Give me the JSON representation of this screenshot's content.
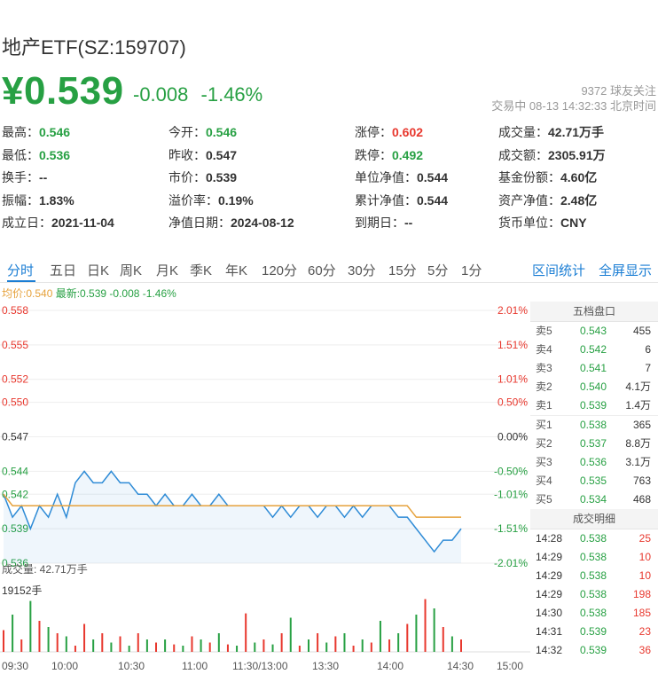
{
  "title": "地产ETF(SZ:159707)",
  "price": "¥0.539",
  "change": "-0.008",
  "change_pct": "-1.46%",
  "followers": "9372  球友关注",
  "status": "交易中  08-13  14:32:33  北京时间",
  "quote": [
    [
      {
        "label": "最高：",
        "value": "0.546",
        "color": "green"
      },
      {
        "label": "今开：",
        "value": "0.546",
        "color": "green"
      },
      {
        "label": "涨停：",
        "value": "0.602",
        "color": "red"
      },
      {
        "label": "成交量：",
        "value": "42.71万手",
        "color": ""
      }
    ],
    [
      {
        "label": "最低：",
        "value": "0.536",
        "color": "green"
      },
      {
        "label": "昨收：",
        "value": "0.547",
        "color": ""
      },
      {
        "label": "跌停：",
        "value": "0.492",
        "color": "green"
      },
      {
        "label": "成交额：",
        "value": "2305.91万",
        "color": ""
      }
    ],
    [
      {
        "label": "换手：",
        "value": "--",
        "color": ""
      },
      {
        "label": "市价：",
        "value": "0.539",
        "color": ""
      },
      {
        "label": "单位净值：",
        "value": "0.544",
        "color": ""
      },
      {
        "label": "基金份额：",
        "value": "4.60亿",
        "color": ""
      }
    ],
    [
      {
        "label": "振幅：",
        "value": "1.83%",
        "color": ""
      },
      {
        "label": "溢价率：",
        "value": "0.19%",
        "color": ""
      },
      {
        "label": "累计净值：",
        "value": "0.544",
        "color": ""
      },
      {
        "label": "资产净值：",
        "value": "2.48亿",
        "color": ""
      }
    ],
    [
      {
        "label": "成立日：",
        "value": "2021-11-04",
        "color": ""
      },
      {
        "label": "净值日期：",
        "value": "2024-08-12",
        "color": ""
      },
      {
        "label": "到期日：",
        "value": "--",
        "color": ""
      },
      {
        "label": "货币单位：",
        "value": "CNY",
        "color": ""
      }
    ]
  ],
  "tabs": [
    "分时",
    "五日",
    "日K",
    "周K",
    "月K",
    "季K",
    "年K",
    "120分",
    "60分",
    "30分",
    "15分",
    "5分",
    "1分"
  ],
  "tabs_right": [
    "区间统计",
    "全屏显示"
  ],
  "legend": {
    "avg": "均价:0.540",
    "latest": "最新:0.539 -0.008 -1.46%"
  },
  "volume_label": "成交量: 42.71万手",
  "volume_max_label": "19152手",
  "orderbook": {
    "title": "五档盘口",
    "asks": [
      {
        "label": "卖5",
        "price": "0.543",
        "vol": "455"
      },
      {
        "label": "卖4",
        "price": "0.542",
        "vol": "6"
      },
      {
        "label": "卖3",
        "price": "0.541",
        "vol": "7"
      },
      {
        "label": "卖2",
        "price": "0.540",
        "vol": "4.1万"
      },
      {
        "label": "卖1",
        "price": "0.539",
        "vol": "1.4万"
      }
    ],
    "bids": [
      {
        "label": "买1",
        "price": "0.538",
        "vol": "365"
      },
      {
        "label": "买2",
        "price": "0.537",
        "vol": "8.8万"
      },
      {
        "label": "买3",
        "price": "0.536",
        "vol": "3.1万"
      },
      {
        "label": "买4",
        "price": "0.535",
        "vol": "763"
      },
      {
        "label": "买5",
        "price": "0.534",
        "vol": "468"
      }
    ],
    "detail_title": "成交明细",
    "trades": [
      {
        "time": "14:28",
        "price": "0.538",
        "vol": "25"
      },
      {
        "time": "14:29",
        "price": "0.538",
        "vol": "10"
      },
      {
        "time": "14:29",
        "price": "0.538",
        "vol": "10"
      },
      {
        "time": "14:29",
        "price": "0.538",
        "vol": "198"
      },
      {
        "time": "14:30",
        "price": "0.538",
        "vol": "185"
      },
      {
        "time": "14:31",
        "price": "0.539",
        "vol": "23"
      },
      {
        "time": "14:32",
        "price": "0.539",
        "vol": "36"
      }
    ]
  },
  "colors": {
    "up": "#e8382e",
    "down": "#27a043",
    "price_line": "#2e8bd6",
    "avg_line": "#e6a23c",
    "accent": "#1b7ed4"
  },
  "chart_data": {
    "type": "line",
    "y_left_ticks": [
      "0.558",
      "0.555",
      "0.552",
      "0.550",
      "0.547",
      "0.544",
      "0.542",
      "0.539",
      "0.536"
    ],
    "y_right_ticks": [
      "2.01%",
      "1.51%",
      "1.01%",
      "0.50%",
      "0.00%",
      "-0.50%",
      "-1.01%",
      "-1.51%",
      "-2.01%"
    ],
    "x_ticks": [
      "09:30",
      "10:00",
      "10:30",
      "11:00",
      "11:30/13:00",
      "13:30",
      "14:00",
      "14:30",
      "15:00"
    ],
    "ylim": [
      0.536,
      0.558
    ],
    "price": [
      0.542,
      0.54,
      0.541,
      0.539,
      0.541,
      0.54,
      0.542,
      0.54,
      0.543,
      0.544,
      0.543,
      0.543,
      0.544,
      0.543,
      0.543,
      0.542,
      0.542,
      0.541,
      0.542,
      0.541,
      0.541,
      0.542,
      0.541,
      0.541,
      0.542,
      0.541,
      0.541,
      0.541,
      0.541,
      0.541,
      0.54,
      0.541,
      0.54,
      0.541,
      0.541,
      0.54,
      0.541,
      0.541,
      0.54,
      0.541,
      0.54,
      0.541,
      0.541,
      0.541,
      0.54,
      0.54,
      0.539,
      0.538,
      0.537,
      0.538,
      0.538,
      0.539
    ],
    "avg": [
      0.542,
      0.541,
      0.541,
      0.541,
      0.541,
      0.541,
      0.541,
      0.541,
      0.541,
      0.541,
      0.541,
      0.541,
      0.541,
      0.541,
      0.541,
      0.541,
      0.541,
      0.541,
      0.541,
      0.541,
      0.541,
      0.541,
      0.541,
      0.541,
      0.541,
      0.541,
      0.541,
      0.541,
      0.541,
      0.541,
      0.541,
      0.541,
      0.541,
      0.541,
      0.541,
      0.541,
      0.541,
      0.541,
      0.541,
      0.541,
      0.541,
      0.541,
      0.541,
      0.541,
      0.541,
      0.541,
      0.54,
      0.54,
      0.54,
      0.54,
      0.54,
      0.54
    ],
    "volumes": [
      0.35,
      0.6,
      0.2,
      0.82,
      0.5,
      0.4,
      0.3,
      0.25,
      0.1,
      0.45,
      0.2,
      0.3,
      0.15,
      0.25,
      0.1,
      0.3,
      0.2,
      0.15,
      0.2,
      0.12,
      0.1,
      0.25,
      0.2,
      0.15,
      0.3,
      0.12,
      0.1,
      0.62,
      0.15,
      0.2,
      0.12,
      0.3,
      0.55,
      0.1,
      0.2,
      0.3,
      0.15,
      0.25,
      0.3,
      0.1,
      0.2,
      0.15,
      0.5,
      0.2,
      0.3,
      0.45,
      0.6,
      0.85,
      0.7,
      0.4,
      0.25,
      0.2
    ],
    "volume_up": [
      true,
      false,
      true,
      false,
      true,
      false,
      true,
      false,
      true,
      true,
      false,
      true,
      false,
      true,
      false,
      true,
      false,
      true,
      false,
      true,
      false,
      true,
      false,
      true,
      false,
      true,
      false,
      true,
      false,
      true,
      false,
      true,
      false,
      true,
      false,
      true,
      false,
      true,
      false,
      true,
      false,
      true,
      false,
      true,
      false,
      true,
      false,
      true,
      false,
      true,
      false,
      true
    ]
  }
}
